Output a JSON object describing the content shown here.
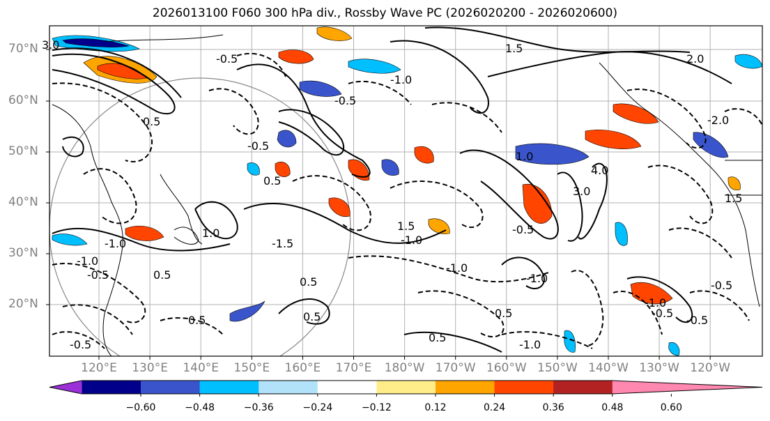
{
  "title": "2026013100 F060 300 hPa div., Rossby Wave PC (2026020200 - 2026020600)",
  "lat_labels": [
    "70°N",
    "60°N",
    "50°N",
    "40°N",
    "30°N",
    "20°N"
  ],
  "lon_labels": [
    "120°E",
    "130°E",
    "140°E",
    "150°E",
    "160°E",
    "170°E",
    "180°W",
    "170°W",
    "160°W",
    "150°W",
    "140°W",
    "130°W",
    "120°W"
  ],
  "colorbar": {
    "colors": [
      "#9b30d8",
      "#00008b",
      "#3a55cc",
      "#00bfff",
      "#b2e2fa",
      "#ffffff",
      "#ffed8a",
      "#ffa500",
      "#ff4500",
      "#b22222",
      "#ff88b0"
    ],
    "ticks": [
      "−0.60",
      "−0.48",
      "−0.36",
      "−0.24",
      "−0.12",
      "0.12",
      "0.24",
      "0.36",
      "0.48",
      "0.60"
    ]
  },
  "contour_labels": [
    "-0.5",
    "0.5",
    "-1.0",
    "1.0",
    "-1.5",
    "1.5",
    "2.0",
    "-2.0",
    "3.0",
    "4.0"
  ]
}
